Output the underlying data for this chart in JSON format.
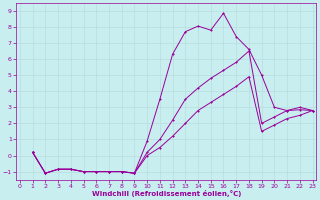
{
  "xlabel": "Windchill (Refroidissement éolien,°C)",
  "bg_color": "#c8eef0",
  "line_color": "#990099",
  "grid_color": "#b8dede",
  "x_ticks": [
    0,
    1,
    2,
    3,
    4,
    5,
    6,
    7,
    8,
    9,
    10,
    11,
    12,
    13,
    14,
    15,
    16,
    17,
    18,
    19,
    20,
    21,
    22,
    23
  ],
  "y_ticks": [
    -1,
    0,
    1,
    2,
    3,
    4,
    5,
    6,
    7,
    8,
    9
  ],
  "xlim": [
    -0.3,
    23.3
  ],
  "ylim": [
    -1.5,
    9.5
  ],
  "line1_x": [
    1,
    2,
    3,
    4,
    5,
    6,
    7,
    8,
    9,
    10,
    11,
    12,
    13,
    14,
    15,
    16,
    17,
    18,
    19,
    20,
    21,
    22,
    23
  ],
  "line1_y": [
    0.2,
    -1.1,
    -0.85,
    -0.85,
    -1.0,
    -1.0,
    -1.0,
    -1.0,
    -1.1,
    0.9,
    3.5,
    6.3,
    7.7,
    8.05,
    7.8,
    8.85,
    7.4,
    6.6,
    5.0,
    3.0,
    2.8,
    3.0,
    2.8
  ],
  "line2_x": [
    1,
    2,
    3,
    4,
    5,
    6,
    7,
    8,
    9,
    10,
    11,
    12,
    13,
    14,
    15,
    16,
    17,
    18,
    19,
    20,
    21,
    22,
    23
  ],
  "line2_y": [
    0.2,
    -1.1,
    -0.85,
    -0.85,
    -1.0,
    -1.0,
    -1.0,
    -1.0,
    -1.1,
    0.2,
    1.0,
    2.2,
    3.5,
    4.2,
    4.8,
    5.3,
    5.8,
    6.5,
    2.0,
    2.4,
    2.8,
    2.85,
    2.8
  ],
  "line3_x": [
    1,
    2,
    3,
    4,
    5,
    6,
    7,
    8,
    9,
    10,
    11,
    12,
    13,
    14,
    15,
    16,
    17,
    18,
    19,
    20,
    21,
    22,
    23
  ],
  "line3_y": [
    0.2,
    -1.1,
    -0.85,
    -0.85,
    -1.0,
    -1.0,
    -1.0,
    -1.0,
    -1.1,
    0.0,
    0.5,
    1.2,
    2.0,
    2.8,
    3.3,
    3.8,
    4.3,
    4.9,
    1.5,
    1.9,
    2.3,
    2.5,
    2.8
  ]
}
